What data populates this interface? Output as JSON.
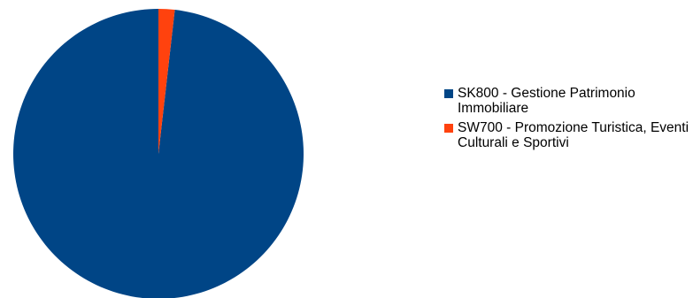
{
  "chart_data": {
    "type": "pie",
    "title": "",
    "slices": [
      {
        "label": "SK800 - Gestione Patrimonio Immobiliare",
        "value": 98.2,
        "color": "#004586"
      },
      {
        "label": "SW700 - Promozione Turistica, Eventi Culturali e Sportivi",
        "value": 1.8,
        "color": "#ff420e"
      }
    ],
    "legend_position": "right"
  }
}
